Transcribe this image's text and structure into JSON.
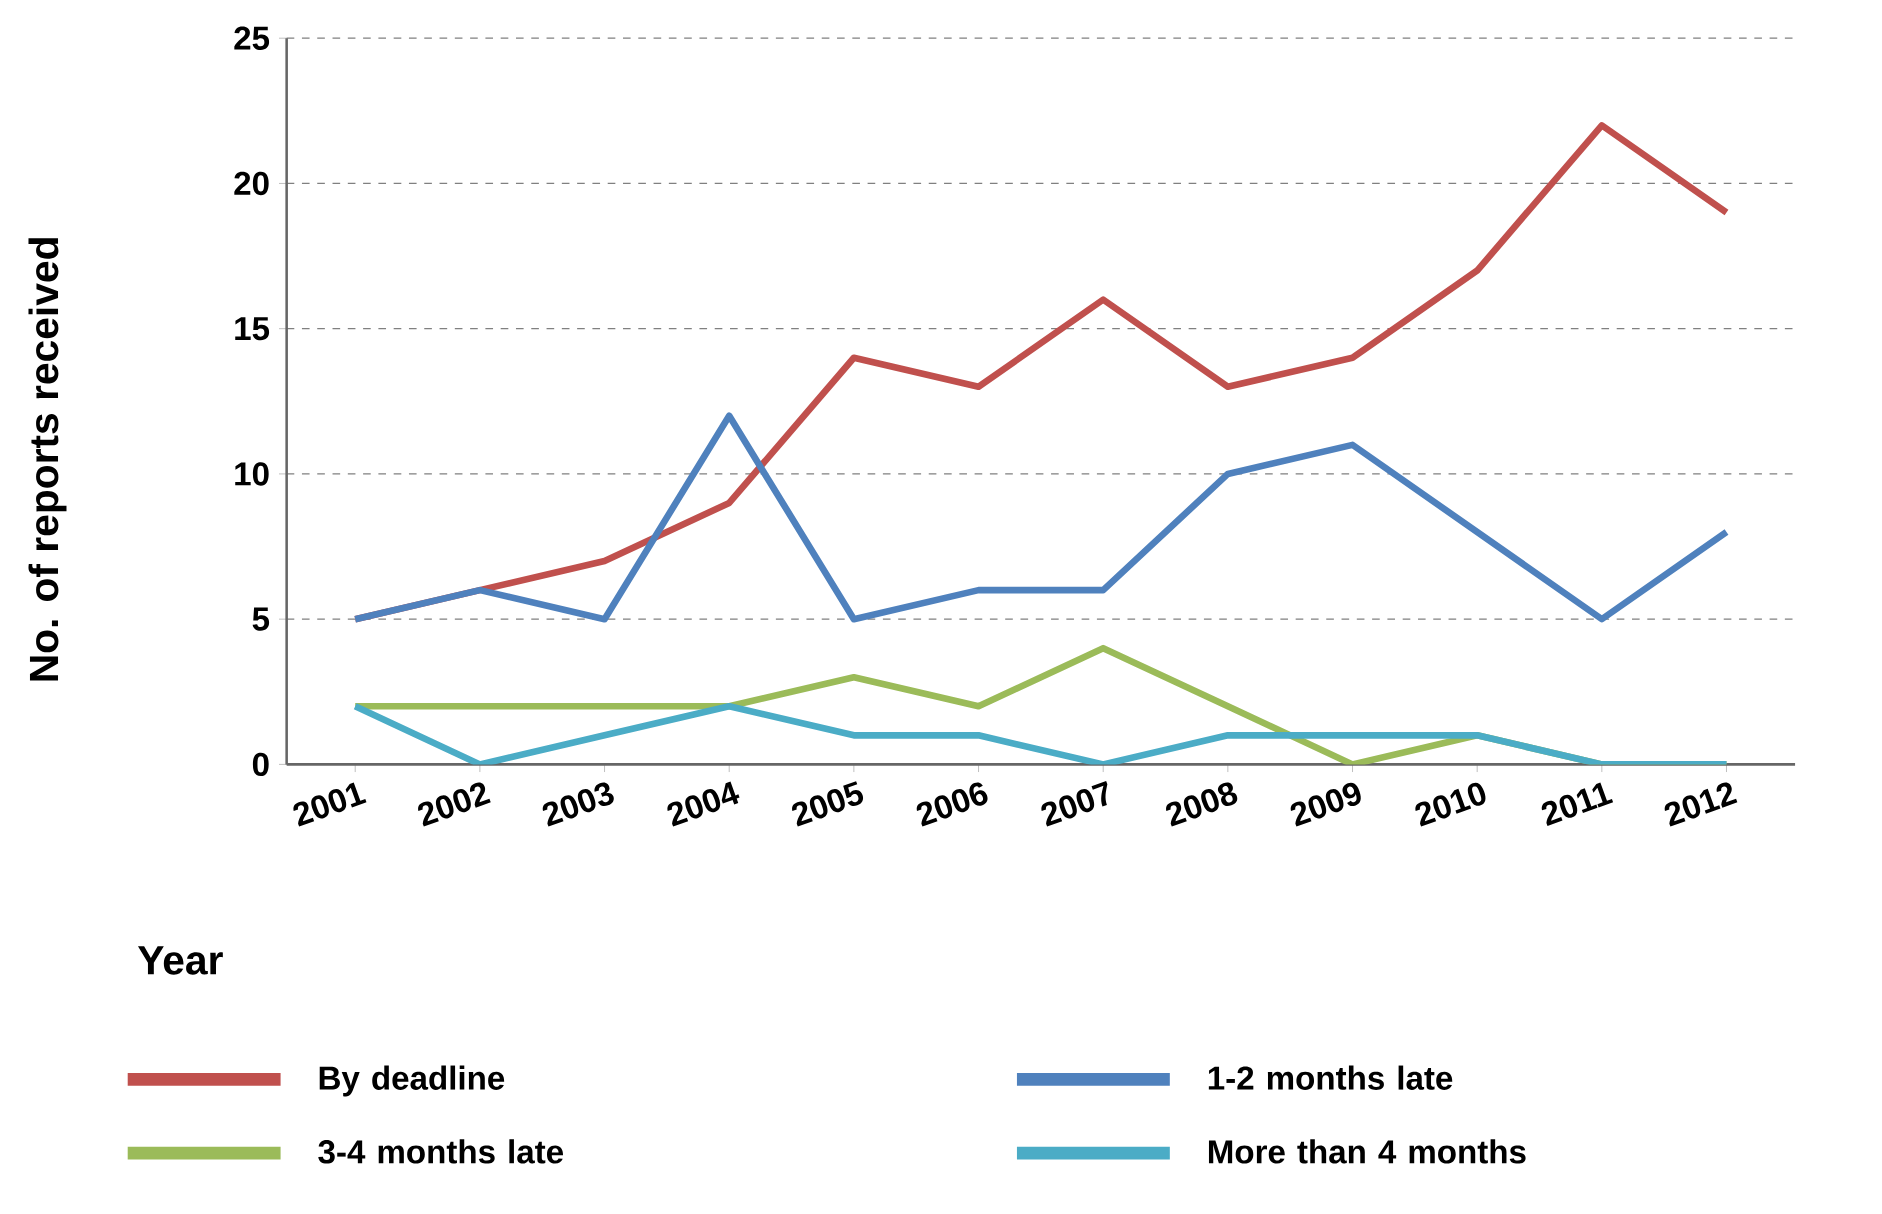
{
  "chart_data": {
    "type": "line",
    "ylabel": "No. of reports received",
    "xlabel": "Year",
    "categories": [
      "2001",
      "2002",
      "2003",
      "2004",
      "2005",
      "2006",
      "2007",
      "2008",
      "2009",
      "2010",
      "2011",
      "2012"
    ],
    "series": [
      {
        "name": "By deadline",
        "color": "#c0504d",
        "values": [
          5,
          6,
          7,
          9,
          14,
          13,
          16,
          13,
          14,
          17,
          22,
          19
        ]
      },
      {
        "name": "1-2 months late",
        "color": "#4f81bd",
        "values": [
          5,
          6,
          5,
          12,
          5,
          6,
          6,
          10,
          11,
          8,
          5,
          8
        ]
      },
      {
        "name": "3-4 months late",
        "color": "#9bbb59",
        "values": [
          2,
          2,
          2,
          2,
          3,
          2,
          4,
          2,
          0,
          1,
          0,
          0
        ]
      },
      {
        "name": "More than 4 months",
        "color": "#4bacc6",
        "values": [
          2,
          0,
          1,
          2,
          1,
          1,
          0,
          1,
          1,
          1,
          0,
          0
        ]
      }
    ],
    "ylim": [
      0,
      25
    ],
    "yticks": [
      0,
      5,
      10,
      15,
      20,
      25
    ],
    "grid": "y",
    "legend": "bottom"
  }
}
